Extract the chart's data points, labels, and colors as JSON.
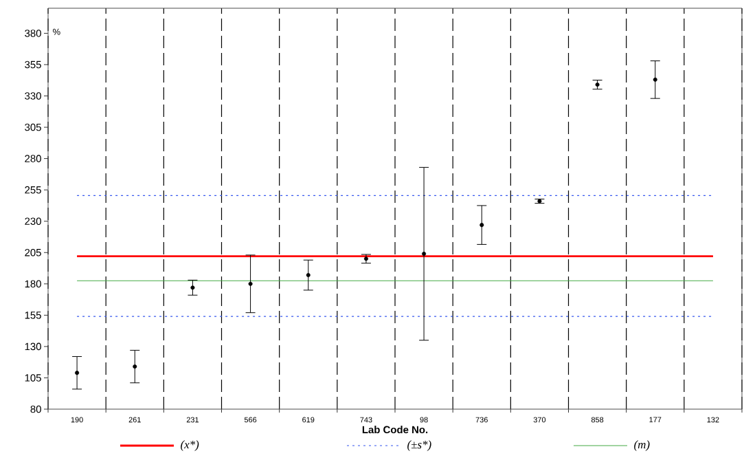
{
  "chart_data": {
    "type": "scatter",
    "xlabel": "Lab Code No.",
    "ylabel": "%",
    "categories": [
      "190",
      "261",
      "231",
      "566",
      "619",
      "743",
      "98",
      "736",
      "370",
      "858",
      "177",
      "132"
    ],
    "values": [
      109,
      114,
      177,
      180,
      187,
      200,
      204,
      227,
      246,
      339,
      343,
      null
    ],
    "errors": [
      13,
      13,
      6,
      23,
      12,
      3.5,
      69,
      15.5,
      1.7,
      3.6,
      15,
      null
    ],
    "color": "#000000",
    "marker": "circle",
    "ylim": [
      80,
      400
    ],
    "yticks": [
      80,
      105,
      130,
      155,
      180,
      205,
      230,
      255,
      280,
      305,
      330,
      355,
      380
    ],
    "grid": "x",
    "legend": "bottom",
    "ref_lines": [
      {
        "axis": "y",
        "value": 202,
        "label": "(x*)",
        "color": "#ff0000",
        "line_style": "solid"
      },
      {
        "axis": "y",
        "value": 250.5,
        "label": "(±s*)",
        "color": "#3355ee",
        "line_style": "dotted"
      },
      {
        "axis": "y",
        "value": 154,
        "label": null,
        "color": "#3355ee",
        "line_style": "dotted"
      },
      {
        "axis": "y",
        "value": 182.5,
        "label": "(m)",
        "color": "#44aa44",
        "line_style": "solid"
      }
    ]
  }
}
